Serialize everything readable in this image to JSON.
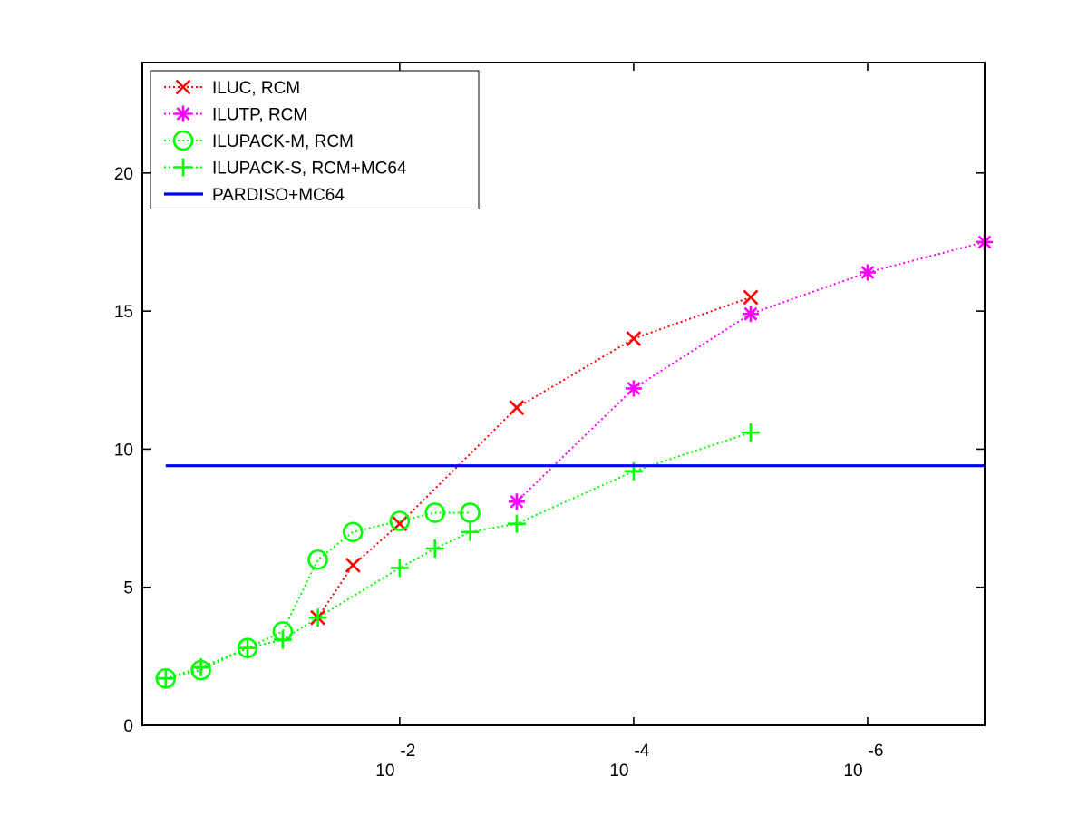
{
  "chart_data": {
    "type": "line",
    "title": "",
    "xlabel": "",
    "ylabel": "",
    "x_scale": "log-reversed",
    "xlim_log10_drop_tolerance": [
      0.2,
      -7.0
    ],
    "ylim": [
      0,
      24
    ],
    "y_ticks": [
      0,
      5,
      10,
      15,
      20
    ],
    "x_ticks": [
      {
        "base": "10",
        "exponent": "-2",
        "value": 0.01
      },
      {
        "base": "10",
        "exponent": "-4",
        "value": 0.0001
      },
      {
        "base": "10",
        "exponent": "-6",
        "value": 1e-06
      }
    ],
    "grid": false,
    "legend_position": "top-left",
    "series": [
      {
        "name": "ILUC, RCM",
        "color": "#ff0000",
        "marker": "x",
        "line_style": "dotted",
        "x": [
          0.0501,
          0.0251,
          0.01,
          0.001,
          0.0001,
          1e-05
        ],
        "y": [
          3.9,
          5.8,
          7.3,
          11.5,
          14.0,
          15.5
        ]
      },
      {
        "name": "ILUTP, RCM",
        "color": "#ff00ff",
        "marker": "asterisk",
        "line_style": "dotted",
        "x": [
          0.001,
          0.0001,
          1e-05,
          1e-06,
          1e-07
        ],
        "y": [
          8.1,
          12.2,
          14.9,
          16.4,
          17.5
        ]
      },
      {
        "name": "ILUPACK-M, RCM",
        "color": "#00ff00",
        "marker": "circle",
        "line_style": "dotted",
        "x": [
          1.0,
          0.5,
          0.2,
          0.1,
          0.0501,
          0.0251,
          0.01,
          0.005,
          0.0025
        ],
        "y": [
          1.7,
          2.0,
          2.8,
          3.4,
          6.0,
          7.0,
          7.4,
          7.7,
          7.7
        ]
      },
      {
        "name": "ILUPACK-S, RCM+MC64",
        "color": "#00ff00",
        "marker": "plus",
        "line_style": "dotted",
        "x": [
          1.0,
          0.5,
          0.2,
          0.1,
          0.0501,
          0.01,
          0.005,
          0.0025,
          0.001,
          0.0001,
          1e-05
        ],
        "y": [
          1.7,
          2.1,
          2.8,
          3.1,
          3.9,
          5.7,
          6.4,
          7.0,
          7.3,
          9.2,
          10.6
        ]
      },
      {
        "name": "PARDISO+MC64",
        "color": "#0000ff",
        "marker": "none",
        "line_style": "solid",
        "x": [
          1.0,
          1e-07
        ],
        "y": [
          9.4,
          9.4
        ]
      }
    ]
  }
}
